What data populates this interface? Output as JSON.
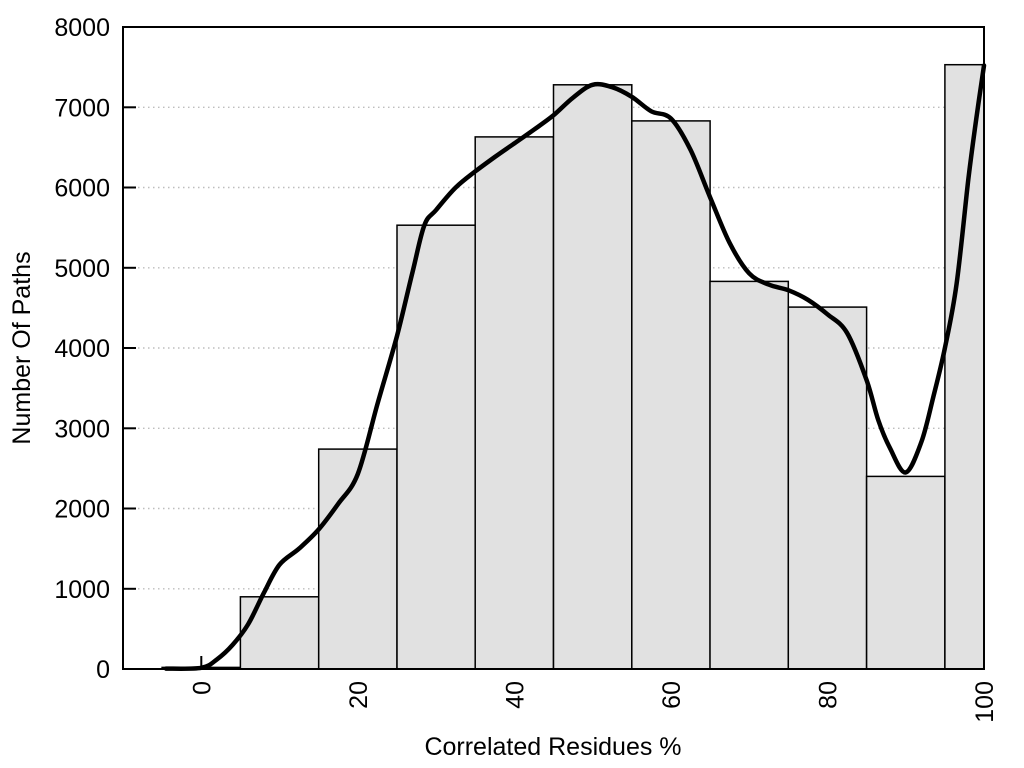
{
  "figure": {
    "background": "#ffffff"
  },
  "chart_data": {
    "type": "bar",
    "subtype": "histogram_with_smooth_curve",
    "title": "",
    "xlabel": "Correlated Residues %",
    "ylabel": "Number Of Paths",
    "xlim": [
      -10,
      100
    ],
    "ylim": [
      0,
      8000
    ],
    "xticks": [
      0,
      20,
      40,
      60,
      80,
      100
    ],
    "yticks": [
      0,
      1000,
      2000,
      3000,
      4000,
      5000,
      6000,
      7000,
      8000
    ],
    "grid": {
      "horizontal": true,
      "vertical": false,
      "style": "dotted",
      "levels": [
        1000,
        2000,
        3000,
        4000,
        5000,
        6000,
        7000
      ]
    },
    "legend": null,
    "bars": {
      "bin_centers": [
        0,
        10,
        20,
        30,
        40,
        50,
        60,
        70,
        80,
        90,
        100
      ],
      "values": [
        20,
        900,
        2740,
        5530,
        6630,
        7280,
        6830,
        4830,
        4510,
        2400,
        7530
      ],
      "bin_width": 10
    },
    "curve": {
      "name": "smoothed-density-curve",
      "x": [
        -4.5,
        0,
        2,
        4,
        6,
        8,
        10,
        12.5,
        15,
        17.5,
        20,
        22.5,
        25,
        27,
        28.5,
        30,
        32.5,
        35,
        37.5,
        40,
        42.5,
        45,
        47.5,
        50,
        52.5,
        55,
        57.5,
        60,
        62.5,
        65,
        67.5,
        70,
        72.5,
        75,
        77.5,
        80,
        82.5,
        85,
        86.5,
        88,
        90,
        92,
        93.5,
        95,
        96.5,
        98,
        99,
        100
      ],
      "y": [
        5,
        15,
        120,
        300,
        560,
        950,
        1300,
        1500,
        1740,
        2060,
        2430,
        3300,
        4150,
        4950,
        5530,
        5720,
        6000,
        6200,
        6380,
        6550,
        6720,
        6900,
        7120,
        7280,
        7250,
        7130,
        6950,
        6860,
        6470,
        5880,
        5310,
        4930,
        4790,
        4720,
        4600,
        4420,
        4190,
        3600,
        3100,
        2750,
        2450,
        2830,
        3380,
        4000,
        4800,
        6100,
        6850,
        7520
      ]
    },
    "colors": {
      "bar_fill": "#e1e1e1",
      "bar_border": "#000000",
      "curve": "#000000",
      "grid": "#bdbdbd",
      "axis": "#000000",
      "text": "#000000",
      "background": "#ffffff"
    }
  }
}
